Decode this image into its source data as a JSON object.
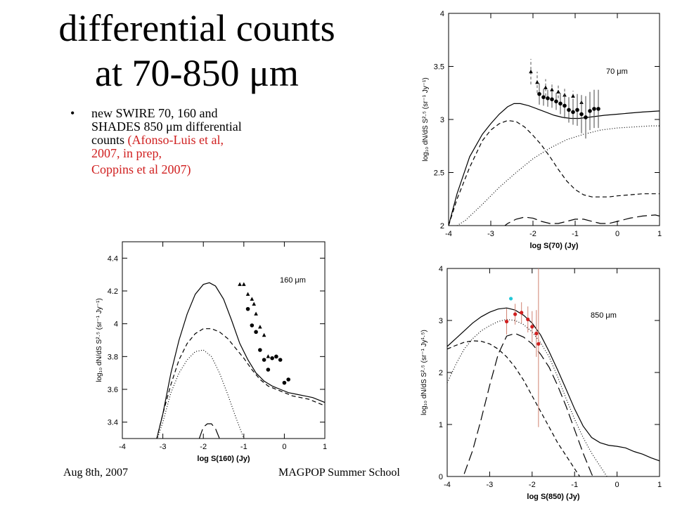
{
  "slide": {
    "title_line1": "differential counts",
    "title_line2": "at 70-850 μm",
    "bullet_marker": "•",
    "bullet_text_1": "new SWIRE 70, 160 and SHADES 850 μm differential counts",
    "bullet_text_2": "(Afonso-Luis et al, 2007, in prep,",
    "bullet_text_3": "Coppins et al 2007)",
    "footer_date": "Aug 8th, 2007",
    "footer_event": "MAGPOP Summer School",
    "accent_red": "#d02020"
  },
  "chart_data": [
    {
      "id": "c70",
      "type": "line",
      "annotation": "70 μm",
      "xlabel": "log S(70) (Jy)",
      "ylabel": "log₁₀ dN/dS S²·⁵ (sr⁻¹ Jy⁻¹)",
      "xlim": [
        -4,
        1
      ],
      "ylim": [
        2,
        4
      ],
      "xticks": [
        -4,
        -3,
        -2,
        -1,
        0,
        1
      ],
      "yticks": [
        2,
        2.5,
        3,
        3.5,
        4
      ],
      "series": [
        {
          "style": "solid",
          "x": [
            -4,
            -3.8,
            -3.5,
            -3.2,
            -3.0,
            -2.8,
            -2.6,
            -2.45,
            -2.3,
            -2.1,
            -1.9,
            -1.7,
            -1.5,
            -1.3,
            -1.1,
            -0.9,
            -0.7,
            -0.5,
            -0.3,
            0,
            0.3,
            0.6,
            1.0
          ],
          "y": [
            2.0,
            2.3,
            2.65,
            2.86,
            2.96,
            3.05,
            3.12,
            3.15,
            3.15,
            3.13,
            3.1,
            3.07,
            3.04,
            3.02,
            3.01,
            3.01,
            3.02,
            3.03,
            3.04,
            3.05,
            3.06,
            3.07,
            3.08
          ]
        },
        {
          "style": "dashed",
          "x": [
            -4,
            -3.8,
            -3.5,
            -3.2,
            -3.0,
            -2.8,
            -2.6,
            -2.4,
            -2.2,
            -2.0,
            -1.8,
            -1.6,
            -1.4,
            -1.2,
            -1.0,
            -0.8,
            -0.6,
            -0.4,
            -0.2,
            0,
            0.3,
            0.6,
            1.0
          ],
          "y": [
            2.0,
            2.25,
            2.55,
            2.8,
            2.9,
            2.96,
            2.99,
            2.98,
            2.93,
            2.85,
            2.76,
            2.65,
            2.53,
            2.42,
            2.34,
            2.29,
            2.27,
            2.27,
            2.27,
            2.28,
            2.29,
            2.3,
            2.3
          ]
        },
        {
          "style": "dotted",
          "x": [
            -4,
            -3.6,
            -3.2,
            -2.8,
            -2.4,
            -2.0,
            -1.6,
            -1.2,
            -0.8,
            -0.4,
            0,
            0.4,
            0.8,
            1.0
          ],
          "y": [
            1.95,
            2.05,
            2.2,
            2.36,
            2.5,
            2.63,
            2.73,
            2.81,
            2.86,
            2.9,
            2.92,
            2.93,
            2.94,
            2.94
          ]
        },
        {
          "style": "longdash",
          "x": [
            -3.0,
            -2.8,
            -2.6,
            -2.4,
            -2.2,
            -2.0,
            -1.8,
            -1.6,
            -1.4,
            -1.2,
            -1.0,
            -0.8,
            -0.6,
            -0.4,
            -0.2,
            0,
            0.3,
            0.6,
            0.9,
            1.0
          ],
          "y": [
            1.9,
            1.96,
            2.02,
            2.06,
            2.08,
            2.07,
            2.04,
            2.02,
            2.02,
            2.04,
            2.06,
            2.06,
            2.04,
            2.02,
            2.02,
            2.04,
            2.07,
            2.09,
            2.1,
            2.09
          ]
        }
      ],
      "points_circle": {
        "x": [
          -1.85,
          -1.75,
          -1.65,
          -1.55,
          -1.45,
          -1.35,
          -1.25,
          -1.15,
          -1.05,
          -0.95,
          -0.85,
          -0.75,
          -0.65,
          -0.55,
          -0.45
        ],
        "y": [
          3.24,
          3.21,
          3.2,
          3.19,
          3.17,
          3.15,
          3.13,
          3.09,
          3.07,
          3.09,
          3.05,
          3.02,
          3.08,
          3.1,
          3.1
        ],
        "err": [
          0.1,
          0.08,
          0.08,
          0.08,
          0.08,
          0.1,
          0.12,
          0.12,
          0.12,
          0.15,
          0.18,
          0.2,
          0.18,
          0.18,
          0.18
        ]
      },
      "points_triangle": {
        "x": [
          -2.05,
          -1.9,
          -1.7,
          -1.55,
          -1.4,
          -1.25,
          -1.05,
          -0.85
        ],
        "y": [
          3.45,
          3.35,
          3.3,
          3.28,
          3.26,
          3.23,
          3.22,
          3.16
        ],
        "err": [
          0.12,
          0.1,
          0.08,
          0.07,
          0.06,
          0.06,
          0.05,
          0.05
        ]
      }
    },
    {
      "id": "c160",
      "type": "line",
      "annotation": "160 μm",
      "xlabel": "log S(160) (Jy)",
      "ylabel": "log₁₀ dN/dS S²·⁵ (sr⁻¹ Jy⁻¹)",
      "xlim": [
        -4,
        1
      ],
      "ylim": [
        3.3,
        4.5
      ],
      "xticks": [
        -4,
        -3,
        -2,
        -1,
        0,
        1
      ],
      "yticks": [
        3.4,
        3.6,
        3.8,
        4,
        4.2,
        4.4
      ],
      "series": [
        {
          "style": "solid",
          "x": [
            -3.2,
            -3.0,
            -2.8,
            -2.6,
            -2.4,
            -2.2,
            -2.0,
            -1.85,
            -1.7,
            -1.5,
            -1.3,
            -1.1,
            -0.9,
            -0.7,
            -0.5,
            -0.3,
            -0.1,
            0.1,
            0.3,
            0.5,
            0.7,
            0.9,
            1.0
          ],
          "y": [
            3.25,
            3.45,
            3.7,
            3.9,
            4.06,
            4.18,
            4.24,
            4.25,
            4.23,
            4.15,
            4.02,
            3.88,
            3.78,
            3.7,
            3.65,
            3.62,
            3.6,
            3.58,
            3.57,
            3.56,
            3.55,
            3.53,
            3.52
          ]
        },
        {
          "style": "dashed",
          "x": [
            -3.2,
            -3.0,
            -2.8,
            -2.6,
            -2.4,
            -2.2,
            -2.0,
            -1.8,
            -1.6,
            -1.4,
            -1.2,
            -1.0,
            -0.8,
            -0.6,
            -0.4,
            -0.2,
            0,
            0.2,
            0.4,
            0.6,
            0.8,
            1.0
          ],
          "y": [
            3.25,
            3.45,
            3.63,
            3.78,
            3.88,
            3.94,
            3.97,
            3.97,
            3.95,
            3.91,
            3.85,
            3.79,
            3.72,
            3.66,
            3.62,
            3.6,
            3.58,
            3.56,
            3.55,
            3.54,
            3.52,
            3.5
          ]
        },
        {
          "style": "dotted",
          "x": [
            -3.2,
            -3.0,
            -2.8,
            -2.6,
            -2.4,
            -2.2,
            -2.0,
            -1.8,
            -1.6,
            -1.4,
            -1.2,
            -1.0
          ],
          "y": [
            3.25,
            3.4,
            3.58,
            3.7,
            3.78,
            3.83,
            3.84,
            3.8,
            3.7,
            3.57,
            3.43,
            3.3
          ]
        },
        {
          "style": "longdash",
          "x": [
            -2.1,
            -2.0,
            -1.9,
            -1.8,
            -1.7,
            -1.6
          ],
          "y": [
            3.3,
            3.37,
            3.39,
            3.39,
            3.36,
            3.3
          ]
        }
      ],
      "points_circle": {
        "x": [
          -0.9,
          -0.8,
          -0.7,
          -0.6,
          -0.5,
          -0.4,
          -0.3,
          -0.2,
          -0.1,
          0.0,
          0.1
        ],
        "y": [
          4.09,
          3.99,
          3.95,
          3.84,
          3.78,
          3.72,
          3.79,
          3.8,
          3.78,
          3.64,
          3.66
        ],
        "err": [
          0,
          0,
          0,
          0,
          0,
          0,
          0,
          0,
          0,
          0,
          0
        ]
      },
      "points_triangle": {
        "x": [
          -1.1,
          -1.0,
          -0.9,
          -0.8,
          -0.75,
          -0.7,
          -0.6,
          -0.5,
          -0.4
        ],
        "y": [
          4.24,
          4.24,
          4.18,
          4.15,
          4.12,
          4.06,
          3.98,
          3.93,
          3.8
        ],
        "err": [
          0,
          0,
          0,
          0,
          0,
          0,
          0,
          0,
          0
        ]
      }
    },
    {
      "id": "c850",
      "type": "line",
      "annotation": "850 μm",
      "xlabel": "log S(850) (Jy)",
      "ylabel": "log₁₀ dN/dS S²·⁵ (sr⁻¹ Jy¹·⁵)",
      "xlim": [
        -4,
        1
      ],
      "ylim": [
        0,
        4
      ],
      "xticks": [
        -4,
        -3,
        -2,
        -1,
        0,
        1
      ],
      "yticks": [
        0,
        1,
        2,
        3,
        4
      ],
      "series": [
        {
          "style": "solid",
          "x": [
            -4.0,
            -3.8,
            -3.6,
            -3.4,
            -3.2,
            -3.0,
            -2.8,
            -2.6,
            -2.4,
            -2.2,
            -2.0,
            -1.8,
            -1.6,
            -1.4,
            -1.2,
            -1.0,
            -0.8,
            -0.6,
            -0.4,
            -0.2,
            0,
            0.2,
            0.4,
            0.6,
            0.8,
            1.0
          ],
          "y": [
            2.5,
            2.65,
            2.8,
            2.95,
            3.07,
            3.16,
            3.22,
            3.24,
            3.2,
            3.1,
            2.95,
            2.72,
            2.4,
            2.05,
            1.68,
            1.3,
            0.97,
            0.75,
            0.65,
            0.6,
            0.58,
            0.55,
            0.48,
            0.43,
            0.36,
            0.3
          ]
        },
        {
          "style": "dotted",
          "x": [
            -4.0,
            -3.8,
            -3.6,
            -3.4,
            -3.2,
            -3.0,
            -2.8,
            -2.6,
            -2.4,
            -2.2,
            -2.0,
            -1.8,
            -1.6,
            -1.4,
            -1.2,
            -1.0,
            -0.8,
            -0.6,
            -0.4,
            -0.2,
            0.0
          ],
          "y": [
            1.8,
            2.15,
            2.45,
            2.65,
            2.8,
            2.9,
            2.98,
            3.02,
            3.0,
            2.92,
            2.78,
            2.57,
            2.3,
            1.92,
            1.5,
            1.1,
            0.75,
            0.45,
            0.2,
            -0.05,
            -0.3
          ]
        },
        {
          "style": "longdash",
          "x": [
            -3.6,
            -3.4,
            -3.2,
            -3.0,
            -2.8,
            -2.6,
            -2.4,
            -2.2,
            -2.0,
            -1.8,
            -1.6,
            -1.4,
            -1.2,
            -1.0,
            -0.8,
            -0.6,
            -0.4
          ],
          "y": [
            0.05,
            0.5,
            1.1,
            1.75,
            2.35,
            2.7,
            2.75,
            2.68,
            2.55,
            2.35,
            2.1,
            1.75,
            1.35,
            0.9,
            0.45,
            0.05,
            -0.3
          ]
        },
        {
          "style": "dashed",
          "x": [
            -4.0,
            -3.8,
            -3.6,
            -3.4,
            -3.2,
            -3.0,
            -2.8,
            -2.6,
            -2.4,
            -2.2,
            -2.0,
            -1.8,
            -1.6,
            -1.4,
            -1.2,
            -1.0,
            -0.8,
            -0.6,
            -0.4
          ],
          "y": [
            2.45,
            2.52,
            2.58,
            2.61,
            2.6,
            2.55,
            2.45,
            2.3,
            2.1,
            1.85,
            1.55,
            1.25,
            0.95,
            0.65,
            0.4,
            0.15,
            -0.1,
            -0.3,
            -0.5
          ]
        }
      ],
      "points_red": {
        "x": [
          -2.6,
          -2.4,
          -2.25,
          -2.1,
          -2.0,
          -1.9,
          -1.85
        ],
        "y": [
          2.98,
          3.12,
          3.15,
          3.02,
          2.88,
          2.75,
          2.55
        ],
        "err": [
          0.25,
          0.2,
          0.2,
          0.25,
          0.3,
          0.45,
          1.6
        ]
      },
      "points_cyan": {
        "x": [
          -2.5
        ],
        "y": [
          3.42
        ]
      },
      "red_color": "#d02020",
      "cyan_color": "#22c8d8",
      "errbar_color": "#d08070"
    }
  ]
}
